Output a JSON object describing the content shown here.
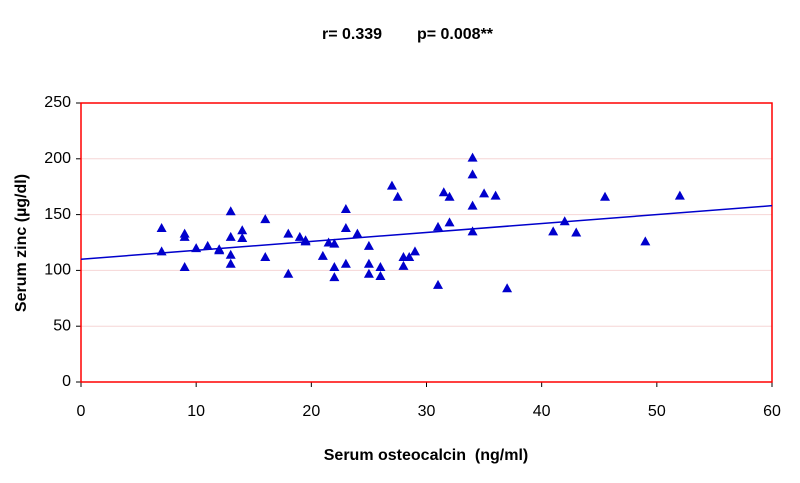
{
  "chart_data": {
    "type": "scatter",
    "annotations": [
      "r= 0.339",
      "p= 0.008**"
    ],
    "x_label": "Serum osteocalcin  (ng/ml)",
    "y_label": "Serum zinc (µg/dl)",
    "color": "#0000cc",
    "frame_color": "#ff0000",
    "grid": true,
    "x": [
      7,
      7,
      9,
      9,
      9,
      10,
      11,
      12,
      12,
      13,
      13,
      13,
      13,
      14,
      14,
      16,
      16,
      18,
      18,
      19,
      19.5,
      19.5,
      21,
      21.5,
      22,
      22,
      22,
      23,
      23,
      23,
      24,
      25,
      25,
      25,
      26,
      26,
      27,
      27.5,
      28,
      28,
      28.5,
      29,
      31,
      31,
      31.5,
      32,
      32,
      34,
      34,
      34,
      34,
      35,
      36,
      37,
      41,
      42,
      43,
      45.5,
      49,
      52
    ],
    "values": [
      138,
      117,
      133,
      130,
      103,
      120,
      122,
      119,
      118,
      153,
      130,
      114,
      106,
      136,
      129,
      146,
      112,
      133,
      97,
      130,
      127,
      126,
      113,
      125,
      124,
      103,
      94,
      155,
      138,
      106,
      133,
      122,
      106,
      97,
      103,
      95,
      176,
      166,
      112,
      104,
      112,
      117,
      139,
      87,
      170,
      166,
      143,
      201,
      186,
      158,
      135,
      169,
      167,
      84,
      135,
      144,
      134,
      166,
      126,
      167
    ],
    "trendline": {
      "x": [
        0,
        60
      ],
      "y": [
        110,
        158
      ]
    },
    "xlim": [
      0,
      60
    ],
    "xticks": [
      0,
      10,
      20,
      30,
      40,
      50,
      60
    ],
    "ylim": [
      0,
      250
    ],
    "yticks": [
      0,
      50,
      100,
      150,
      200,
      250
    ]
  }
}
